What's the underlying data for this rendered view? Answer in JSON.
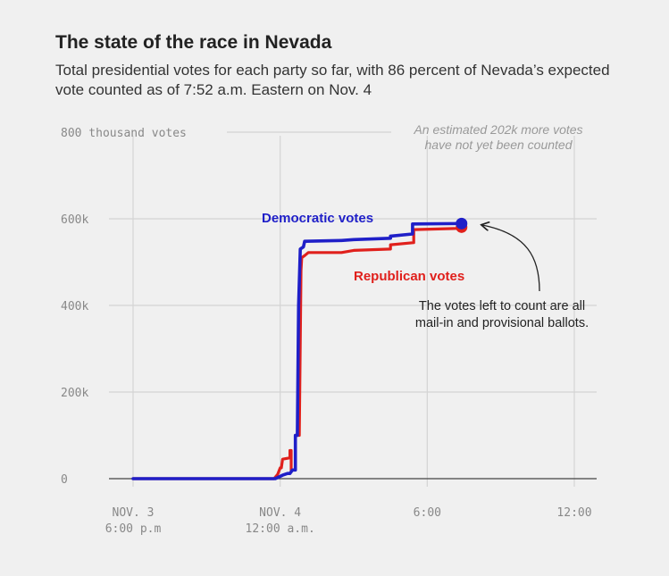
{
  "header": {
    "title": "The state of the race in Nevada",
    "subtitle": "Total presidential votes for each party so far, with 86 percent of Nevada’s expected vote counted as of 7:52 a.m. Eastern on Nov. 4"
  },
  "chart_data": {
    "type": "line",
    "title": "The state of the race in Nevada",
    "ylabel": "800 thousand votes",
    "ylim": [
      0,
      800
    ],
    "y_ticks": [
      {
        "value": 0,
        "label": "0"
      },
      {
        "value": 200,
        "label": "200k"
      },
      {
        "value": 400,
        "label": "400k"
      },
      {
        "value": 600,
        "label": "600k"
      },
      {
        "value": 800,
        "label": "800 thousand votes"
      }
    ],
    "xlim": [
      -0.2,
      18.2
    ],
    "x_ticks": [
      {
        "value": 0,
        "label_line1": "NOV. 3",
        "label_line2": "6:00 p.m"
      },
      {
        "value": 6,
        "label_line1": "NOV. 4",
        "label_line2": "12:00 a.m."
      },
      {
        "value": 12,
        "label_line1": "6:00",
        "label_line2": ""
      },
      {
        "value": 18,
        "label_line1": "12:00",
        "label_line2": ""
      }
    ],
    "grid": true,
    "series": [
      {
        "name": "Democratic votes",
        "color": "#1f1fc8",
        "points": [
          [
            0.0,
            0
          ],
          [
            5.8,
            0
          ],
          [
            6.1,
            8
          ],
          [
            6.3,
            12
          ],
          [
            6.4,
            12
          ],
          [
            6.5,
            20
          ],
          [
            6.5,
            20
          ],
          [
            6.62,
            20
          ],
          [
            6.62,
            100
          ],
          [
            6.7,
            100
          ],
          [
            6.75,
            400
          ],
          [
            6.82,
            530
          ],
          [
            6.95,
            535
          ],
          [
            7.0,
            548
          ],
          [
            8.5,
            550
          ],
          [
            9.0,
            552
          ],
          [
            10.5,
            555
          ],
          [
            10.5,
            560
          ],
          [
            11.4,
            565
          ],
          [
            11.4,
            588
          ],
          [
            13.4,
            589
          ]
        ]
      },
      {
        "name": "Republican votes",
        "color": "#e0201c",
        "points": [
          [
            0.0,
            0
          ],
          [
            5.75,
            0
          ],
          [
            5.9,
            10
          ],
          [
            6.0,
            25
          ],
          [
            6.05,
            25
          ],
          [
            6.1,
            45
          ],
          [
            6.4,
            48
          ],
          [
            6.4,
            65
          ],
          [
            6.45,
            65
          ],
          [
            6.45,
            20
          ],
          [
            6.62,
            20
          ],
          [
            6.62,
            100
          ],
          [
            6.78,
            100
          ],
          [
            6.85,
            480
          ],
          [
            6.88,
            510
          ],
          [
            7.0,
            515
          ],
          [
            7.15,
            522
          ],
          [
            8.5,
            522
          ],
          [
            9.0,
            527
          ],
          [
            10.5,
            530
          ],
          [
            10.5,
            540
          ],
          [
            11.45,
            545
          ],
          [
            11.45,
            575
          ],
          [
            13.4,
            578
          ]
        ]
      }
    ],
    "endpoint": {
      "x": 13.4,
      "y": 589
    },
    "labels": {
      "dem": "Democratic votes",
      "rep": "Republican votes",
      "estimate_line1": "An estimated 202k more votes",
      "estimate_line2": "have not yet been counted",
      "note_line1": "The votes left to count are all",
      "note_line2": "mail-in and provisional ballots."
    }
  }
}
